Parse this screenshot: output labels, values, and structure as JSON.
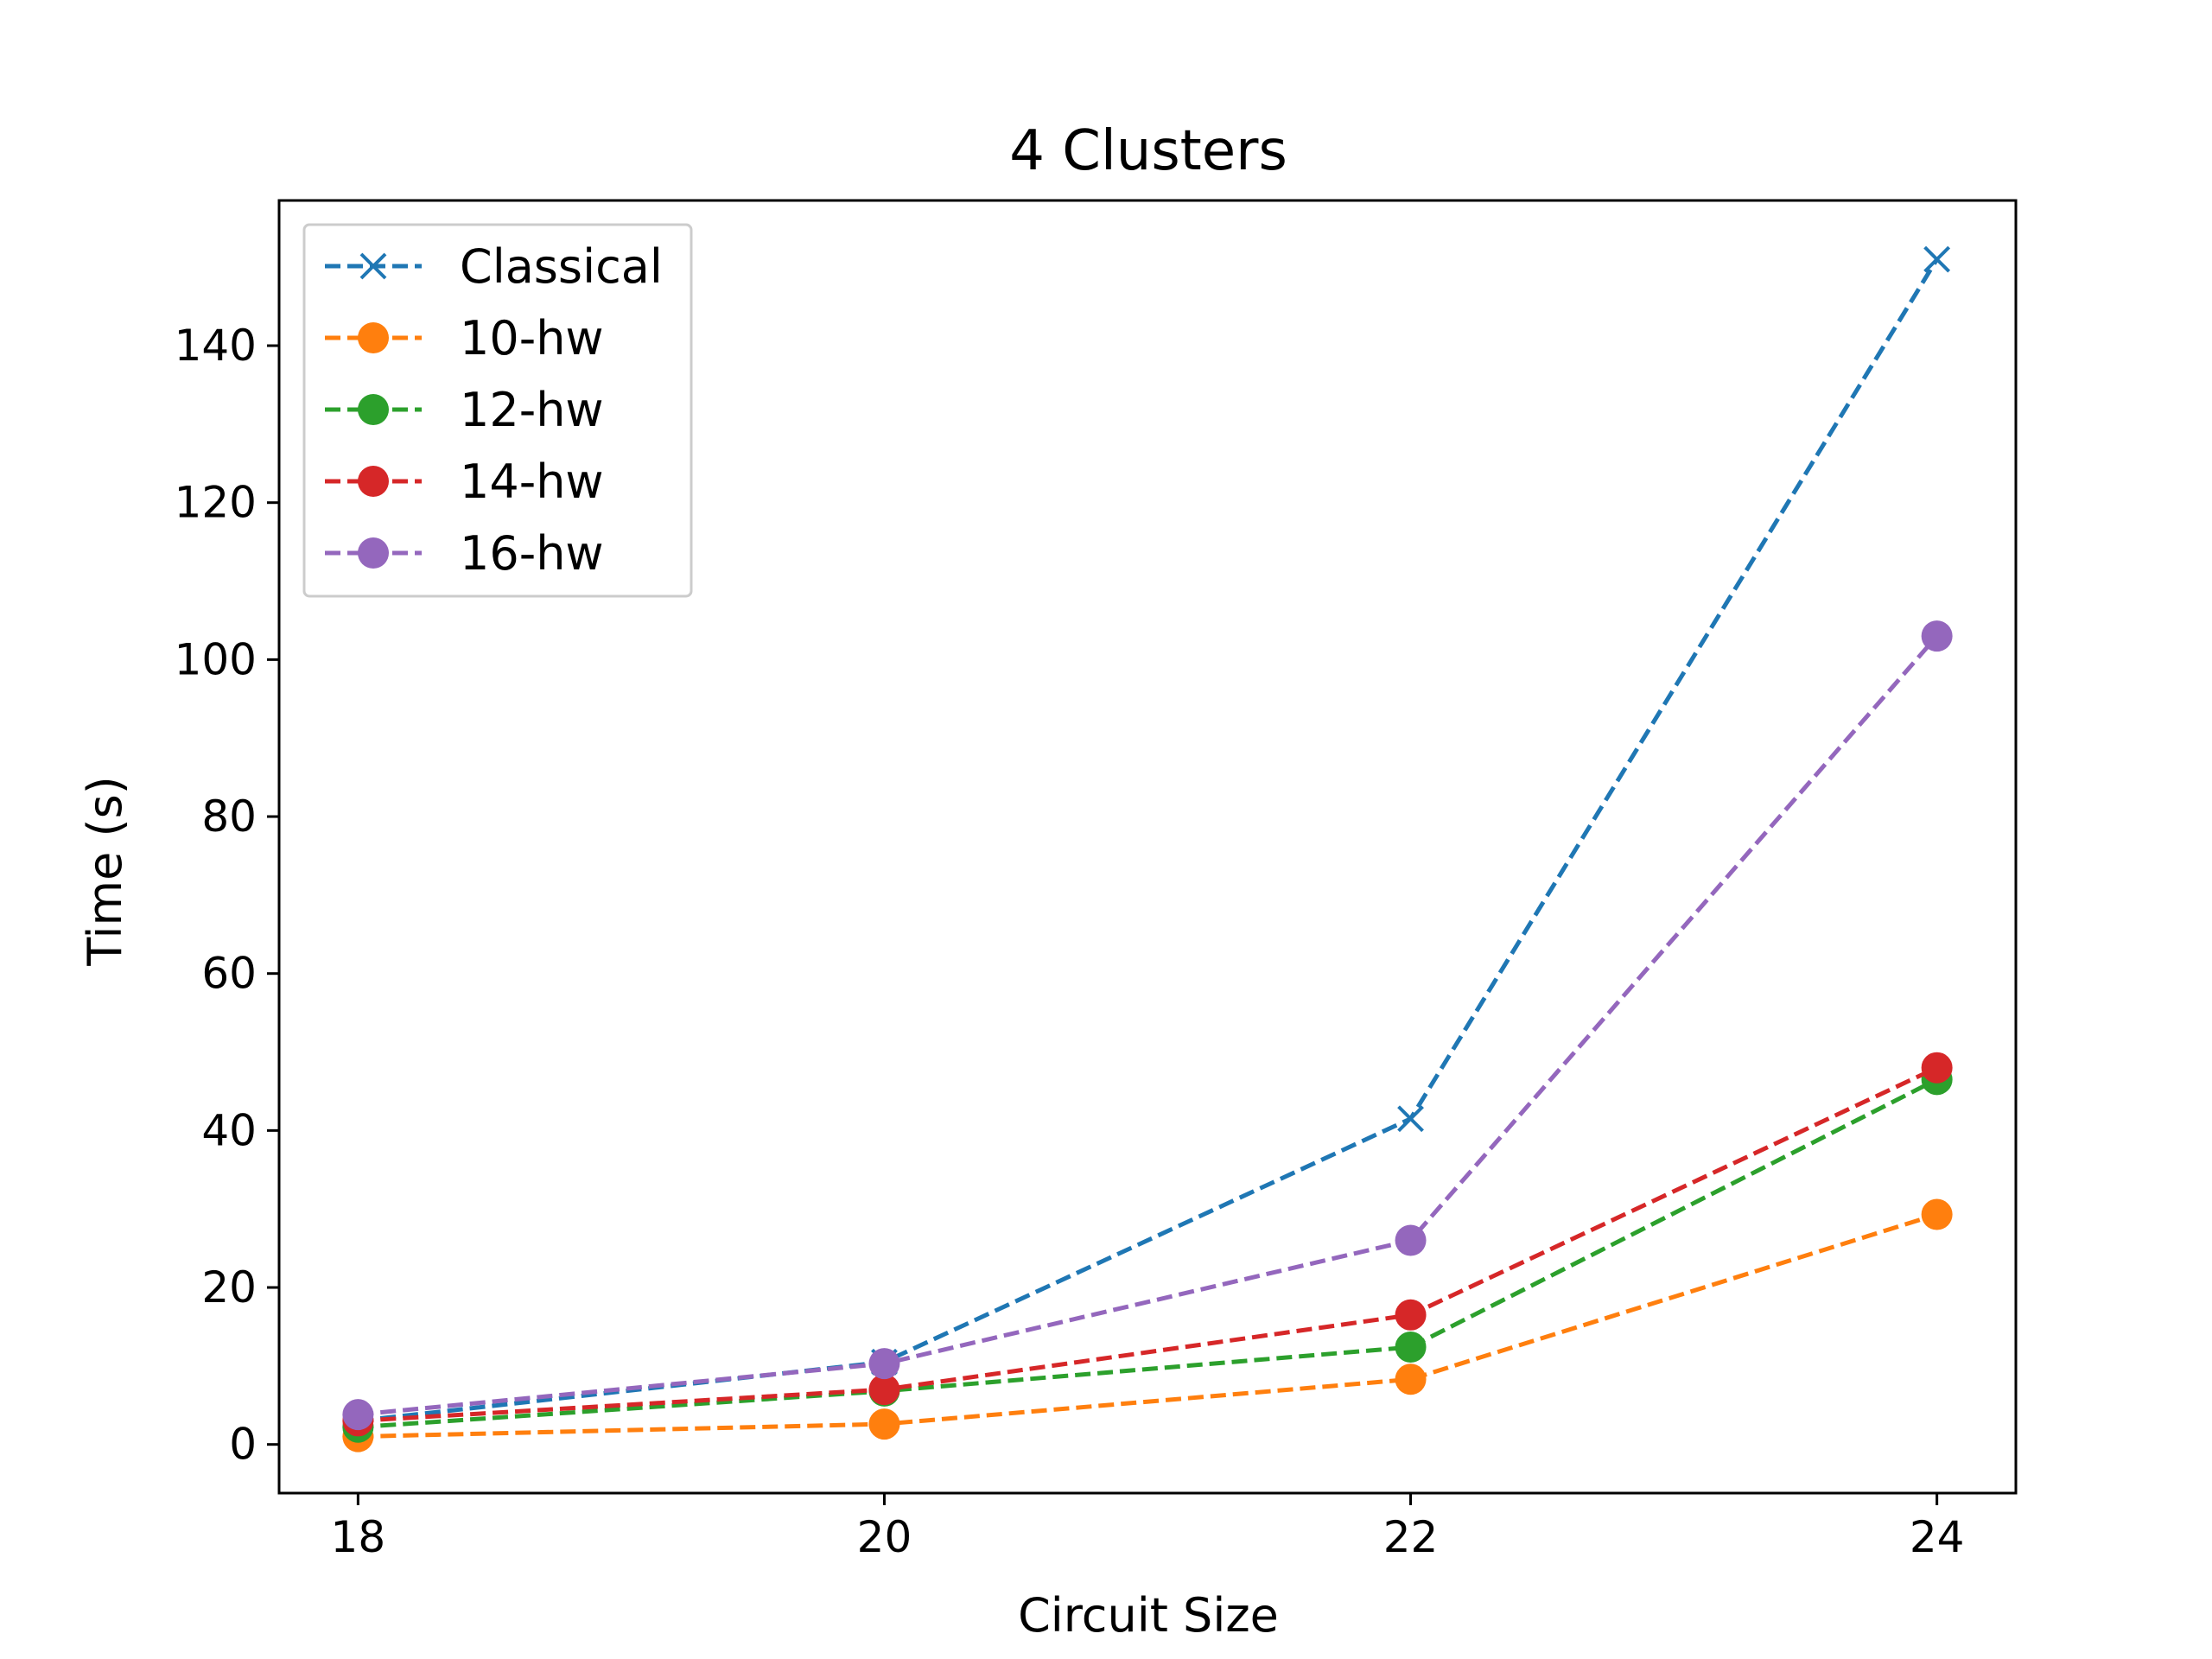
{
  "chart_data": {
    "type": "line",
    "title": "4 Clusters",
    "xlabel": "Circuit Size",
    "ylabel": "Time (s)",
    "x": [
      18,
      20,
      22,
      24
    ],
    "xlim": [
      17.7,
      24.3
    ],
    "ylim": [
      -6.2,
      158.5
    ],
    "xticks": [
      18,
      20,
      22,
      24
    ],
    "yticks": [
      0,
      20,
      40,
      60,
      80,
      100,
      120,
      140
    ],
    "grid": false,
    "legend_position": "top-left",
    "series": [
      {
        "name": "Classical",
        "color": "#1f77b4",
        "marker": "x",
        "values": [
          3.0,
          10.5,
          41.5,
          151.0
        ]
      },
      {
        "name": "10-hw",
        "color": "#ff7f0e",
        "marker": "circle",
        "values": [
          1.0,
          2.6,
          8.3,
          29.3
        ]
      },
      {
        "name": "12-hw",
        "color": "#2ca02c",
        "marker": "circle",
        "values": [
          2.2,
          6.8,
          12.4,
          46.5
        ]
      },
      {
        "name": "14-hw",
        "color": "#d62728",
        "marker": "circle",
        "values": [
          3.0,
          7.0,
          16.5,
          48.0
        ]
      },
      {
        "name": "16-hw",
        "color": "#9467bd",
        "marker": "circle",
        "values": [
          3.8,
          10.3,
          26.0,
          103.0
        ]
      }
    ]
  }
}
